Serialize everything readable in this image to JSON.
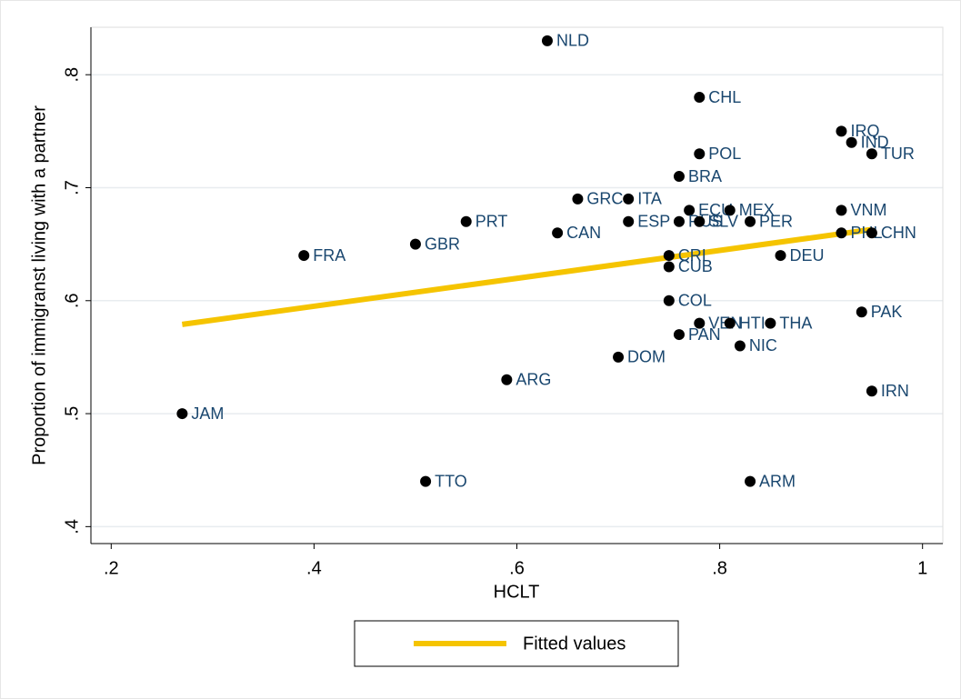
{
  "chart_data": {
    "type": "scatter",
    "x_label": "HCLT",
    "y_label": "Proportion of immigranst living with a partner",
    "xlim": [
      0.18,
      1.02
    ],
    "ylim": [
      0.385,
      0.842
    ],
    "xticks": [
      {
        "value": 0.2,
        "label": ".2"
      },
      {
        "value": 0.4,
        "label": ".4"
      },
      {
        "value": 0.6,
        "label": ".6"
      },
      {
        "value": 0.8,
        "label": ".8"
      },
      1
    ],
    "yticks": [
      {
        "value": 0.4,
        "label": ".4"
      },
      {
        "value": 0.5,
        "label": ".5"
      },
      {
        "value": 0.6,
        "label": ".6"
      },
      {
        "value": 0.7,
        "label": ".7"
      },
      {
        "value": 0.8,
        "label": ".8"
      }
    ],
    "grid": true,
    "points": {
      "color": "#000000",
      "label_color": "#1a476f",
      "labels": [
        "NLD",
        "CHL",
        "IRQ",
        "IND",
        "TUR",
        "POL",
        "BRA",
        "GRC",
        "ITA",
        "ECU",
        "MEX",
        "VNM",
        "PRT",
        "ESP",
        "RUS",
        "SLV",
        "PER",
        "CAN",
        "PHL",
        "CHN",
        "FRA",
        "GBR",
        "CRI",
        "DEU",
        "CUB",
        "COL",
        "VEN",
        "HTI",
        "THA",
        "PAK",
        "PAN",
        "NIC",
        "DOM",
        "ARG",
        "IRN",
        "JAM",
        "TTO",
        "ARM"
      ],
      "x": [
        0.63,
        0.78,
        0.92,
        0.93,
        0.95,
        0.78,
        0.76,
        0.66,
        0.71,
        0.77,
        0.81,
        0.92,
        0.55,
        0.71,
        0.76,
        0.78,
        0.83,
        0.64,
        0.92,
        0.95,
        0.39,
        0.5,
        0.75,
        0.86,
        0.75,
        0.75,
        0.78,
        0.81,
        0.85,
        0.94,
        0.76,
        0.82,
        0.7,
        0.59,
        0.95,
        0.27,
        0.51,
        0.83
      ],
      "values": [
        0.83,
        0.78,
        0.75,
        0.74,
        0.73,
        0.73,
        0.71,
        0.69,
        0.69,
        0.68,
        0.68,
        0.68,
        0.67,
        0.67,
        0.67,
        0.67,
        0.67,
        0.66,
        0.66,
        0.66,
        0.64,
        0.65,
        0.64,
        0.64,
        0.63,
        0.6,
        0.58,
        0.58,
        0.58,
        0.59,
        0.57,
        0.56,
        0.55,
        0.53,
        0.52,
        0.5,
        0.44,
        0.44
      ]
    },
    "series": [
      {
        "name": "Fitted values",
        "color": "#f5c400",
        "x": [
          0.27,
          0.95
        ],
        "values": [
          0.579,
          0.663
        ]
      }
    ]
  }
}
